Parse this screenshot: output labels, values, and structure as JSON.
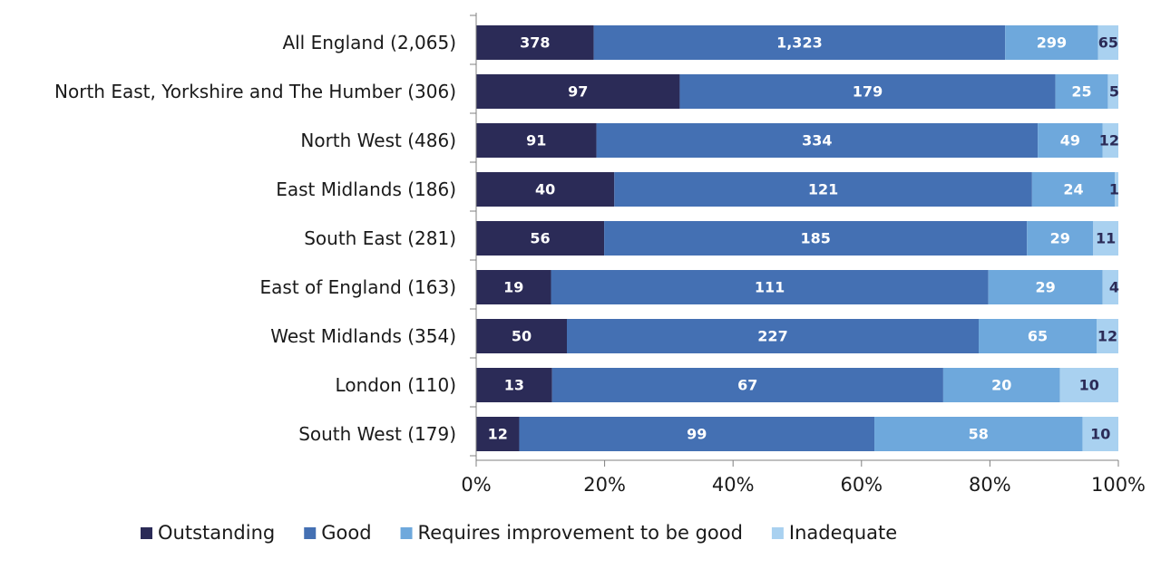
{
  "chart_data": {
    "type": "bar",
    "orientation": "horizontal",
    "stacked": "percent",
    "categories": [
      "All England (2,065)",
      "North East, Yorkshire and The Humber (306)",
      "North West (486)",
      "East Midlands (186)",
      "South East (281)",
      "East of England (163)",
      "West Midlands (354)",
      "London (110)",
      "South West (179)"
    ],
    "series": [
      {
        "name": "Outstanding",
        "color": "#2b2b57",
        "values": [
          378,
          97,
          91,
          40,
          56,
          19,
          50,
          13,
          12
        ]
      },
      {
        "name": "Good",
        "color": "#4470b3",
        "values": [
          1323,
          179,
          334,
          121,
          185,
          111,
          227,
          67,
          99
        ]
      },
      {
        "name": "Requires improvement to be good",
        "color": "#6ea8dc",
        "values": [
          299,
          25,
          49,
          24,
          29,
          29,
          65,
          20,
          58
        ]
      },
      {
        "name": "Inadequate",
        "color": "#a9d1f0",
        "values": [
          65,
          5,
          12,
          1,
          11,
          4,
          12,
          10,
          10
        ]
      }
    ],
    "x_ticks": [
      "0%",
      "20%",
      "40%",
      "60%",
      "80%",
      "100%"
    ],
    "xlim": [
      0,
      100
    ],
    "grid": false,
    "legend_position": "bottom",
    "label_colors": {
      "light": "#ffffff",
      "dark": "#2b2b57"
    }
  }
}
